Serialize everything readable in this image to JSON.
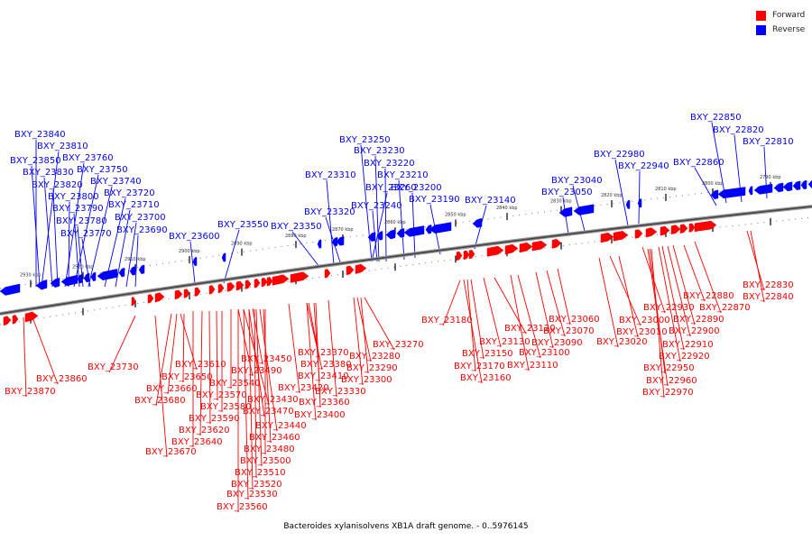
{
  "legend": {
    "forward": {
      "label": "Forward",
      "color": "#ff0000"
    },
    "reverse": {
      "label": "Reverse",
      "color": "#0000ff"
    }
  },
  "caption": "Bacteroides xylanisolvens XB1A draft genome. - 0..5976145",
  "axis_ticks": [
    "2930 kbp",
    "2920 kbp",
    "2910 kbp",
    "2900 kbp",
    "2890 kbp",
    "2880 kbp",
    "2870 kbp",
    "2860 kbp",
    "2850 kbp",
    "2840 kbp",
    "2830 kbp",
    "2820 kbp",
    "2810 kbp",
    "2800 kbp",
    "2790 kbp"
  ],
  "reverse_labels": [
    "BXY_23840",
    "BXY_23810",
    "BXY_23850",
    "BXY_23760",
    "BXY_23830",
    "BXY_23750",
    "BXY_23820",
    "BXY_23740",
    "BXY_23800",
    "BXY_23720",
    "BXY_23790",
    "BXY_23710",
    "BXY_23780",
    "BXY_23700",
    "BXY_23770",
    "BXY_23690",
    "BXY_23600",
    "BXY_23550",
    "BXY_23350",
    "BXY_23310",
    "BXY_23320",
    "BXY_23250",
    "BXY_23230",
    "BXY_23220",
    "BXY_23210",
    "BXY_23260",
    "BXY_23200",
    "BXY_23240",
    "BXY_23190",
    "BXY_23140",
    "BXY_23050",
    "BXY_23040",
    "BXY_22980",
    "BXY_22940",
    "BXY_22850",
    "BXY_22820",
    "BXY_22810",
    "BXY_22860"
  ],
  "forward_labels": [
    "BXY_23870",
    "BXY_23860",
    "BXY_23730",
    "BXY_23610",
    "BXY_23650",
    "BXY_23660",
    "BXY_23680",
    "BXY_23670",
    "BXY_23570",
    "BXY_23580",
    "BXY_23590",
    "BXY_23620",
    "BXY_23640",
    "BXY_23540",
    "BXY_23490",
    "BXY_23450",
    "BXY_23430",
    "BXY_23470",
    "BXY_23440",
    "BXY_23460",
    "BXY_23480",
    "BXY_23500",
    "BXY_23510",
    "BXY_23520",
    "BXY_23530",
    "BXY_23560",
    "BXY_23370",
    "BXY_23380",
    "BXY_23410",
    "BXY_23420",
    "BXY_23360",
    "BXY_23400",
    "BXY_23280",
    "BXY_23290",
    "BXY_23300",
    "BXY_23330",
    "BXY_23270",
    "BXY_23180",
    "BXY_23120",
    "BXY_23130",
    "BXY_23150",
    "BXY_23170",
    "BXY_23160",
    "BXY_23100",
    "BXY_23110",
    "BXY_23060",
    "BXY_23070",
    "BXY_23090",
    "BXY_23000",
    "BXY_23010",
    "BXY_23020",
    "BXY_22930",
    "BXY_22880",
    "BXY_22870",
    "BXY_22890",
    "BXY_22900",
    "BXY_22910",
    "BXY_22920",
    "BXY_22950",
    "BXY_22960",
    "BXY_22970",
    "BXY_22830",
    "BXY_22840"
  ]
}
